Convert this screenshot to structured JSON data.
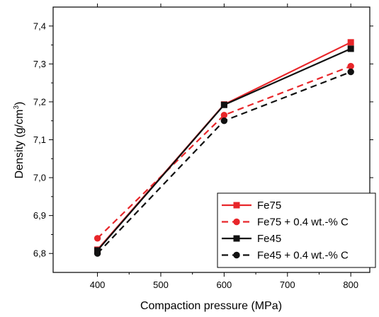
{
  "chart_data": {
    "type": "line",
    "title": "",
    "xlabel": "Compaction pressure (MPa)",
    "ylabel_main": "Density (g/cm",
    "ylabel_sup": "3",
    "ylabel_end": ")",
    "xlim": [
      330,
      830
    ],
    "ylim": [
      6.75,
      7.45
    ],
    "xticks": [
      400,
      500,
      600,
      700,
      800
    ],
    "xtick_labels": [
      "400",
      "500",
      "600",
      "700",
      "800"
    ],
    "yticks": [
      6.8,
      6.9,
      7.0,
      7.1,
      7.2,
      7.3,
      7.4
    ],
    "ytick_labels": [
      "6,8",
      "6,9",
      "7,0",
      "7,1",
      "7,2",
      "7,3",
      "7,4"
    ],
    "grid": false,
    "legend_position": "bottom-right",
    "x": [
      400,
      600,
      800
    ],
    "series": [
      {
        "name": "Fe75",
        "values": [
          6.81,
          7.193,
          7.357
        ],
        "color": "#e8262a",
        "dash": "solid",
        "marker": "square"
      },
      {
        "name": "Fe75 + 0.4 wt.-% C",
        "values": [
          6.84,
          7.165,
          7.294
        ],
        "color": "#e8262a",
        "dash": "dashed",
        "marker": "circle"
      },
      {
        "name": "Fe45",
        "values": [
          6.808,
          7.192,
          7.34
        ],
        "color": "#111111",
        "dash": "solid",
        "marker": "square"
      },
      {
        "name": "Fe45 + 0.4 wt.-% C",
        "values": [
          6.8,
          7.15,
          7.279
        ],
        "color": "#111111",
        "dash": "dashed",
        "marker": "circle"
      }
    ]
  }
}
